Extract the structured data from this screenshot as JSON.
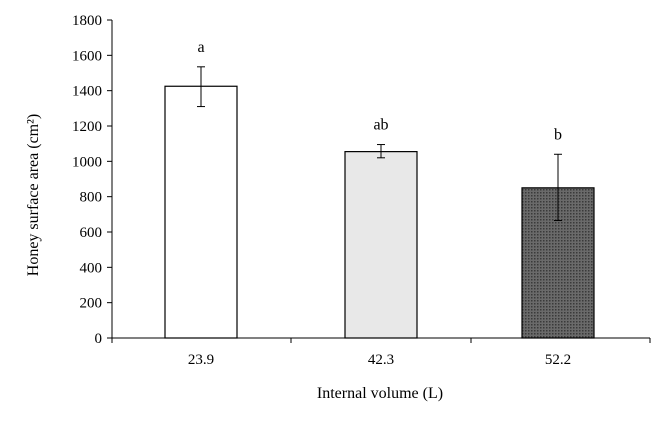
{
  "chart_data": {
    "type": "bar",
    "title": "",
    "xlabel": "Internal volume (L)",
    "ylabel": "Honey surface area (cm²)",
    "ylim": [
      0,
      1800
    ],
    "yticks": [
      0,
      200,
      400,
      600,
      800,
      1000,
      1200,
      1400,
      1600,
      1800
    ],
    "grid": false,
    "legend": "none",
    "categories": [
      "23.9",
      "42.3",
      "52.2"
    ],
    "values": [
      1425,
      1055,
      850
    ],
    "error_high": [
      1535,
      1095,
      1040
    ],
    "error_low": [
      1310,
      1020,
      665
    ],
    "significance_labels": [
      "a",
      "ab",
      "b"
    ],
    "bar_fills": [
      "white",
      "light-gray",
      "dark-gray-dotted"
    ],
    "colors": {
      "axis": "#000000",
      "bar_stroke": "#000000",
      "bar_white": "#ffffff",
      "bar_light": "#e8e8e8",
      "bar_dark": "#5a5a5a"
    }
  }
}
